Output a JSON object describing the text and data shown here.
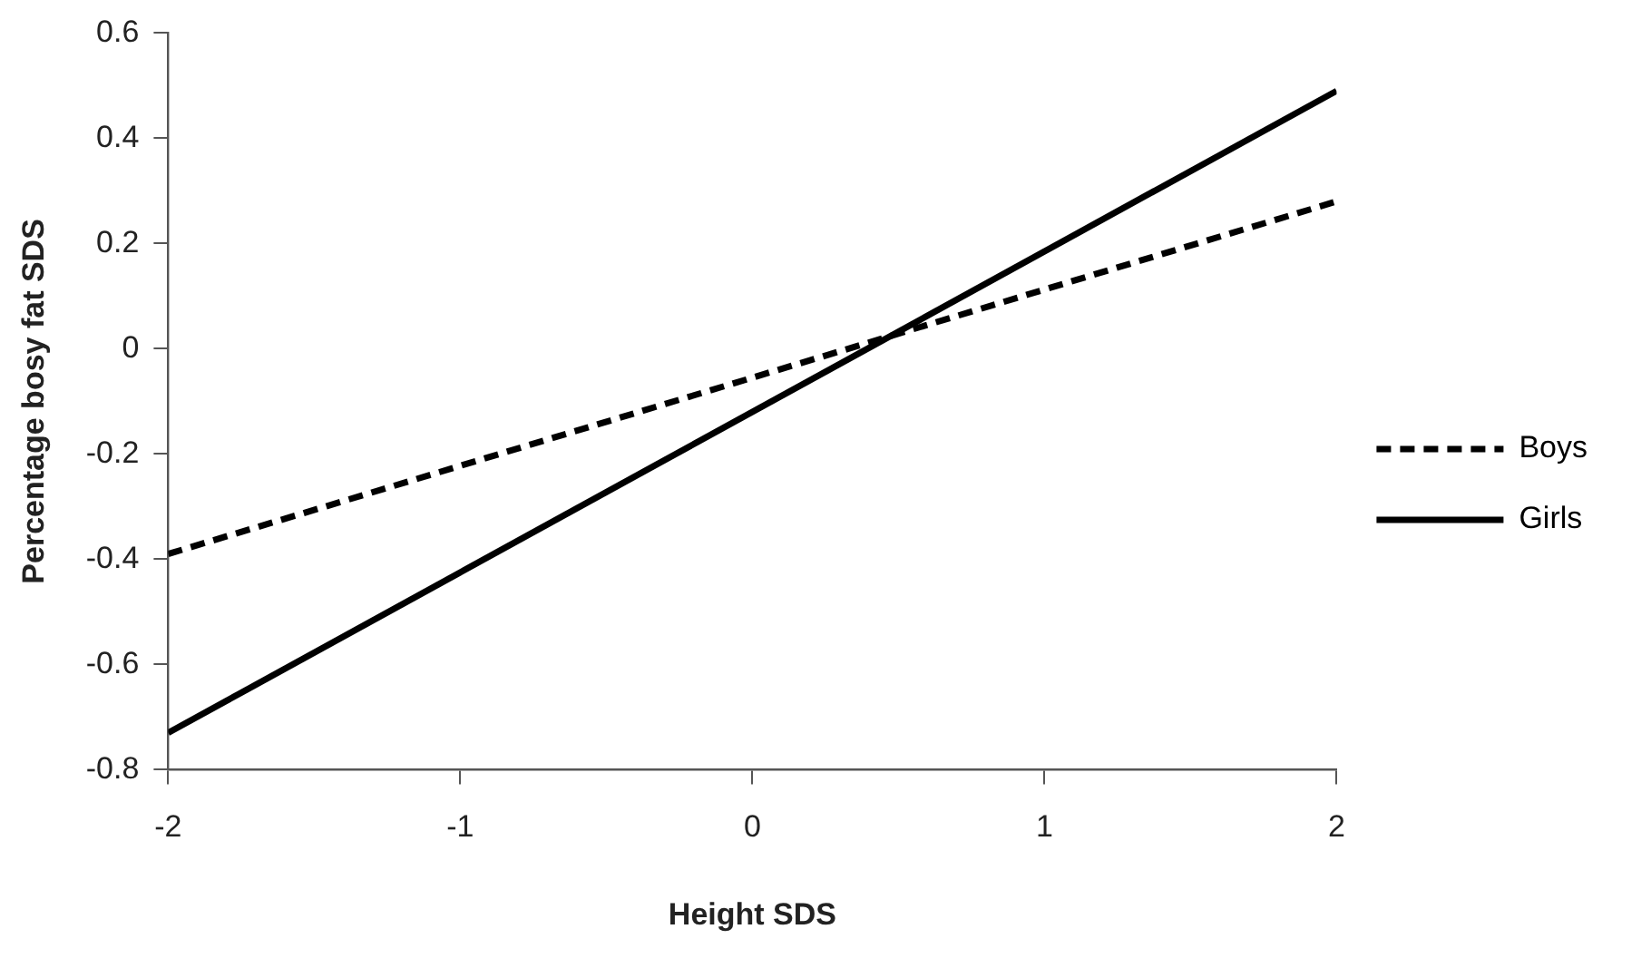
{
  "chart_data": {
    "type": "line",
    "xlabel": "Height SDS",
    "ylabel": "Percentage bosy fat SDS",
    "x": [
      -2,
      2
    ],
    "series": [
      {
        "name": "Boys",
        "color": "#000000",
        "values": [
          -0.39,
          0.28
        ],
        "line_style": "dashed"
      },
      {
        "name": "Girls",
        "color": "#000000",
        "values": [
          -0.73,
          0.49
        ],
        "line_style": "solid"
      }
    ],
    "xlim": [
      -2,
      2
    ],
    "xticks": [
      -2,
      -1,
      0,
      1,
      2
    ],
    "ylim": [
      -0.8,
      0.6
    ],
    "yticks": [
      0.6,
      0.4,
      0.2,
      0,
      -0.2,
      -0.4,
      -0.6,
      -0.8
    ],
    "grid": false,
    "legend": "right",
    "marker": "none"
  }
}
